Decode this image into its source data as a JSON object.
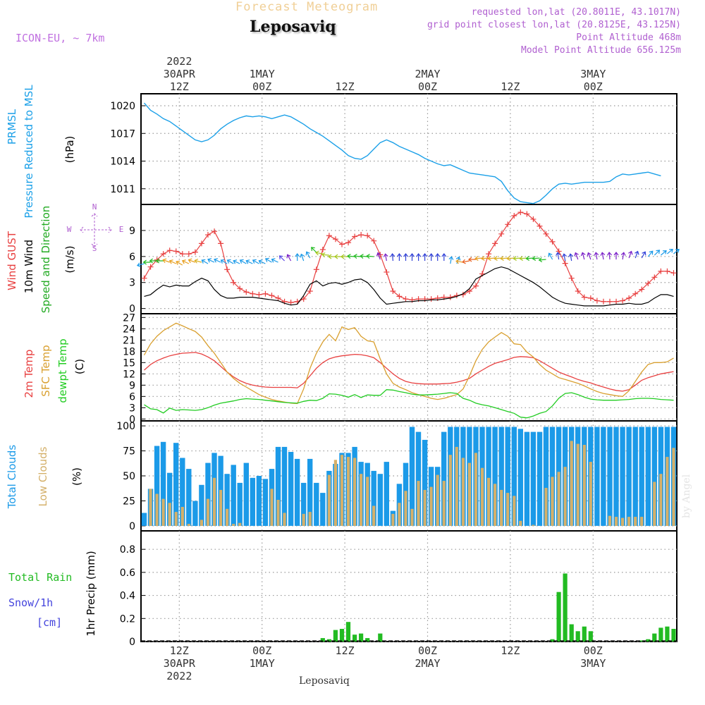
{
  "header": {
    "title_top": "Forecast Meteogram",
    "location": "Leposaviq",
    "model": "ICON-EU, ~ 7km",
    "requested": "requested lon,lat (20.8011E, 43.1017N)",
    "grid_point": "grid point closest lon,lat (20.8125E, 43.125N)",
    "point_alt": "Point Altitude 468m",
    "model_alt": "Model Point Altitude 656.125m",
    "footer": "Leposaviq",
    "credit": "by Angel"
  },
  "colors": {
    "pressure": "#1ba0e8",
    "gust": "#e84040",
    "wind": "#000000",
    "direction": "#22aa22",
    "t2m": "#e84040",
    "sfc": "#d9a030",
    "dewpt": "#22cc22",
    "total_clouds": "#1b9ae8",
    "low_clouds": "#d4b06a",
    "rain": "#22bb22",
    "snow": "#4444dd",
    "meta": "#b060d0"
  },
  "time_axis": {
    "start": "2022-04-30 06Z",
    "step_hours": 1,
    "top_labels": [
      {
        "lines": [
          "2022",
          "30APR",
          "12Z"
        ]
      },
      {
        "lines": [
          "1MAY",
          "00Z"
        ]
      },
      {
        "lines": [
          "12Z"
        ]
      },
      {
        "lines": [
          "2MAY",
          "00Z"
        ]
      },
      {
        "lines": [
          "12Z"
        ]
      },
      {
        "lines": [
          "3MAY",
          "00Z"
        ]
      }
    ],
    "bottom_labels": [
      {
        "lines": [
          "12Z",
          "30APR",
          "2022"
        ]
      },
      {
        "lines": [
          "00Z",
          "1MAY"
        ]
      },
      {
        "lines": [
          "12Z"
        ]
      },
      {
        "lines": [
          "00Z",
          "2MAY"
        ]
      },
      {
        "lines": [
          "12Z"
        ]
      },
      {
        "lines": [
          "00Z",
          "3MAY"
        ]
      }
    ]
  },
  "chart_data": [
    {
      "type": "line",
      "panel": "pressure",
      "ylabel_lines": [
        "PRMSL",
        "Pressure Reduced to MSL"
      ],
      "unit": "(hPa)",
      "yticks": [
        1011,
        1014,
        1017,
        1020
      ],
      "ylim": [
        1009.3,
        1021.3
      ],
      "series": [
        {
          "values": [
            1020.3,
            1019.5,
            1019.1,
            1018.6,
            1018.3,
            1017.8,
            1017.3,
            1016.8,
            1016.3,
            1016.1,
            1016.3,
            1016.8,
            1017.5,
            1018.0,
            1018.4,
            1018.7,
            1018.9,
            1018.8,
            1018.9,
            1018.8,
            1018.6,
            1018.8,
            1019.0,
            1018.8,
            1018.4,
            1018.0,
            1017.5,
            1017.1,
            1016.7,
            1016.2,
            1015.7,
            1015.2,
            1014.6,
            1014.3,
            1014.2,
            1014.6,
            1015.3,
            1016.0,
            1016.3,
            1016.0,
            1015.6,
            1015.3,
            1015.0,
            1014.7,
            1014.3,
            1014.0,
            1013.7,
            1013.5,
            1013.6,
            1013.3,
            1013.0,
            1012.7,
            1012.6,
            1012.5,
            1012.4,
            1012.3,
            1011.8,
            1010.8,
            1010.0,
            1009.6,
            1009.5,
            1009.4,
            1009.7,
            1010.3,
            1011.0,
            1011.5,
            1011.6,
            1011.5,
            1011.6,
            1011.7,
            1011.7,
            1011.7,
            1011.7,
            1011.8,
            1012.3,
            1012.6,
            1012.5,
            1012.6,
            1012.7,
            1012.8,
            1012.6,
            1012.4
          ]
        }
      ]
    },
    {
      "type": "line",
      "panel": "wind",
      "ylabel_lines": [
        "Wind GUST",
        "10m Wind",
        "Speed and Direction"
      ],
      "unit": "(m/s)",
      "compass": {
        "n": "N",
        "s": "S",
        "w": "W",
        "e": "E"
      },
      "yticks": [
        0,
        3,
        6,
        9
      ],
      "ylim": [
        -0.6,
        12
      ],
      "series": [
        {
          "name": "Wind GUST",
          "values": [
            3.5,
            4.8,
            5.6,
            6.3,
            6.7,
            6.6,
            6.3,
            6.3,
            6.5,
            7.5,
            8.5,
            8.9,
            7.5,
            4.5,
            3.0,
            2.3,
            1.9,
            1.7,
            1.6,
            1.7,
            1.5,
            1.2,
            0.8,
            0.7,
            0.8,
            1.1,
            2.0,
            4.5,
            6.8,
            8.4,
            8.0,
            7.4,
            7.6,
            8.3,
            8.5,
            8.4,
            7.8,
            6.2,
            4.2,
            2.0,
            1.4,
            1.1,
            1.0,
            1.1,
            1.1,
            1.1,
            1.2,
            1.3,
            1.3,
            1.5,
            1.6,
            2.0,
            2.6,
            4.0,
            6.3,
            7.5,
            8.6,
            9.7,
            10.7,
            11.1,
            10.9,
            10.3,
            9.5,
            8.6,
            7.7,
            6.6,
            5.2,
            3.5,
            2.0,
            1.3,
            1.2,
            0.9,
            0.8,
            0.8,
            0.8,
            0.9,
            1.2,
            1.7,
            2.2,
            2.9,
            3.6,
            4.3,
            4.3,
            4.1
          ]
        },
        {
          "name": "10m Wind",
          "values": [
            1.4,
            1.6,
            2.2,
            2.7,
            2.5,
            2.7,
            2.6,
            2.6,
            3.1,
            3.5,
            3.2,
            2.2,
            1.5,
            1.2,
            1.2,
            1.3,
            1.3,
            1.3,
            1.2,
            1.1,
            1.0,
            0.9,
            0.6,
            0.4,
            0.5,
            1.5,
            2.8,
            3.2,
            2.6,
            2.9,
            3.0,
            2.8,
            3.0,
            3.3,
            3.4,
            3.0,
            2.2,
            1.2,
            0.5,
            0.6,
            0.7,
            0.8,
            0.8,
            0.9,
            0.9,
            1.0,
            1.0,
            1.1,
            1.2,
            1.4,
            1.7,
            2.3,
            3.4,
            3.8,
            4.2,
            4.6,
            4.8,
            4.6,
            4.2,
            3.8,
            3.4,
            3.0,
            2.5,
            1.9,
            1.3,
            0.9,
            0.6,
            0.5,
            0.4,
            0.3,
            0.3,
            0.3,
            0.3,
            0.4,
            0.5,
            0.5,
            0.6,
            0.5,
            0.5,
            0.7,
            1.2,
            1.6,
            1.6,
            1.4
          ]
        }
      ]
    },
    {
      "type": "line",
      "panel": "temperature",
      "ylabel_lines": [
        "2m Temp",
        "SFC Temp",
        "dewpt Temp"
      ],
      "unit": "(C)",
      "yticks": [
        0,
        3,
        6,
        9,
        12,
        15,
        18,
        21,
        24,
        27
      ],
      "ylim": [
        -0.5,
        28
      ],
      "series": [
        {
          "name": "2m Temp",
          "values": [
            13.0,
            14.5,
            15.5,
            16.2,
            16.8,
            17.2,
            17.5,
            17.6,
            17.7,
            17.3,
            16.5,
            15.5,
            14.0,
            12.5,
            11.2,
            10.2,
            9.5,
            9.0,
            8.7,
            8.5,
            8.4,
            8.4,
            8.4,
            8.4,
            8.3,
            9.5,
            11.5,
            13.5,
            15.0,
            16.0,
            16.5,
            16.8,
            17.0,
            17.2,
            17.1,
            16.8,
            16.3,
            15.0,
            13.5,
            12.0,
            10.8,
            10.0,
            9.6,
            9.4,
            9.3,
            9.3,
            9.3,
            9.4,
            9.5,
            9.8,
            10.2,
            10.8,
            12.0,
            13.0,
            14.0,
            14.8,
            15.3,
            15.8,
            16.4,
            16.6,
            16.5,
            16.3,
            15.5,
            14.5,
            13.5,
            12.5,
            11.8,
            11.2,
            10.5,
            10.0,
            9.6,
            9.0,
            8.5,
            8.0,
            7.6,
            7.4,
            7.8,
            9.0,
            10.3,
            11.0,
            11.5,
            12.0,
            12.3,
            12.6
          ]
        },
        {
          "name": "SFC Temp",
          "values": [
            17.0,
            20.0,
            22.0,
            23.5,
            24.5,
            25.5,
            24.8,
            24.0,
            23.3,
            21.8,
            19.5,
            17.5,
            15.0,
            12.5,
            10.8,
            9.5,
            8.5,
            7.5,
            6.5,
            5.8,
            5.2,
            4.8,
            4.5,
            4.2,
            4.1,
            8.0,
            13.5,
            17.5,
            20.5,
            22.5,
            20.8,
            24.5,
            23.8,
            24.3,
            22.0,
            20.8,
            20.5,
            16.0,
            12.0,
            9.5,
            8.5,
            7.8,
            7.0,
            6.5,
            6.0,
            5.5,
            5.2,
            5.5,
            6.0,
            6.5,
            8.0,
            11.5,
            15.5,
            18.5,
            20.5,
            21.8,
            23.0,
            22.0,
            20.0,
            19.8,
            17.8,
            16.5,
            14.5,
            13.0,
            12.0,
            11.0,
            10.5,
            10.0,
            9.5,
            8.8,
            8.0,
            7.3,
            6.8,
            6.5,
            6.2,
            6.0,
            7.5,
            10.0,
            12.5,
            14.5,
            15.0,
            15.0,
            15.2,
            16.2
          ]
        },
        {
          "name": "dewpt Temp",
          "values": [
            3.8,
            2.7,
            2.5,
            1.6,
            2.9,
            2.3,
            2.5,
            2.4,
            2.3,
            2.5,
            3.0,
            3.7,
            4.2,
            4.5,
            4.8,
            5.2,
            5.4,
            5.3,
            5.2,
            5.0,
            4.8,
            4.6,
            4.4,
            4.3,
            4.2,
            4.7,
            5.0,
            4.9,
            5.5,
            6.7,
            6.6,
            6.3,
            5.8,
            6.5,
            5.7,
            6.4,
            6.3,
            6.3,
            7.8,
            7.7,
            7.3,
            7.0,
            6.6,
            6.4,
            6.4,
            6.5,
            6.6,
            6.8,
            7.0,
            6.8,
            5.5,
            5.0,
            4.2,
            3.8,
            3.5,
            3.0,
            2.5,
            2.0,
            1.5,
            0.5,
            0.3,
            0.8,
            1.5,
            2.0,
            3.5,
            5.5,
            6.8,
            7.0,
            6.5,
            5.8,
            5.3,
            5.1,
            5.0,
            5.0,
            5.0,
            5.1,
            5.2,
            5.4,
            5.5,
            5.5,
            5.4,
            5.2,
            5.1,
            5.0
          ]
        }
      ]
    },
    {
      "type": "bar",
      "panel": "clouds",
      "ylabel_lines": [
        "Total Clouds",
        "Low Clouds"
      ],
      "unit": "(%)",
      "yticks": [
        0,
        25,
        50,
        75,
        100
      ],
      "ylim": [
        -5,
        105
      ],
      "series": [
        {
          "name": "Total Clouds",
          "values": [
            13,
            37,
            80,
            84,
            53,
            83,
            68,
            57,
            25,
            41,
            63,
            73,
            70,
            52,
            61,
            43,
            63,
            48,
            50,
            47,
            57,
            79,
            79,
            74,
            67,
            43,
            67,
            43,
            33,
            55,
            62,
            73,
            73,
            79,
            64,
            63,
            55,
            52,
            64,
            15,
            42,
            63,
            99,
            94,
            86,
            59,
            59,
            94,
            99,
            99,
            99,
            99,
            99,
            99,
            99,
            99,
            99,
            99,
            99,
            97,
            94,
            94,
            94,
            99,
            99,
            99,
            99,
            99,
            99,
            99,
            99,
            99,
            99,
            99,
            99,
            99,
            99,
            99,
            99,
            99,
            99,
            99,
            99,
            99
          ]
        },
        {
          "name": "Low Clouds",
          "values": [
            0,
            37,
            32,
            27,
            23,
            14,
            19,
            2,
            0,
            6,
            27,
            48,
            36,
            17,
            2,
            3,
            0,
            0,
            0,
            0,
            37,
            26,
            13,
            0,
            0,
            12,
            14,
            0,
            0,
            51,
            66,
            71,
            69,
            68,
            52,
            49,
            20,
            0,
            0,
            12,
            23,
            35,
            17,
            45,
            36,
            39,
            51,
            45,
            71,
            79,
            68,
            63,
            73,
            58,
            48,
            42,
            36,
            33,
            30,
            5,
            0,
            1,
            0,
            38,
            49,
            54,
            59,
            85,
            82,
            81,
            64,
            0,
            0,
            10,
            9,
            8,
            9,
            9,
            9,
            0,
            44,
            52,
            69,
            78
          ]
        }
      ]
    },
    {
      "type": "bar",
      "panel": "precip",
      "ylabel_lines": [
        "1hr Precip (mm)"
      ],
      "left_labels": [
        "Total  Rain",
        "Snow/1h",
        "[cm]"
      ],
      "yticks": [
        "0",
        "0.2",
        "0.4",
        "0.6",
        "0.8"
      ],
      "ylim": [
        0,
        0.96
      ],
      "series": [
        {
          "name": "Total Rain",
          "values": [
            0,
            0,
            0,
            0,
            0,
            0,
            0,
            0,
            0,
            0,
            0,
            0,
            0,
            0,
            0,
            0,
            0,
            0,
            0,
            0,
            0,
            0,
            0,
            0,
            0,
            0,
            0,
            0,
            0.03,
            0.02,
            0.1,
            0.11,
            0.17,
            0.06,
            0.07,
            0.03,
            0,
            0.07,
            0,
            0,
            0,
            0,
            0,
            0,
            0,
            0,
            0,
            0,
            0,
            0,
            0,
            0,
            0,
            0,
            0,
            0,
            0,
            0,
            0,
            0,
            0,
            0,
            0,
            0,
            0.02,
            0.43,
            0.59,
            0.15,
            0.09,
            0.13,
            0.09,
            0,
            0,
            0,
            0,
            0,
            0,
            0,
            0.01,
            0.02,
            0.07,
            0.12,
            0.13,
            0.11
          ]
        },
        {
          "name": "Snow/1h",
          "values": [
            0,
            0,
            0,
            0,
            0,
            0,
            0,
            0,
            0,
            0,
            0,
            0,
            0,
            0,
            0,
            0,
            0,
            0,
            0,
            0,
            0,
            0,
            0,
            0,
            0,
            0,
            0,
            0,
            0,
            0,
            0,
            0,
            0,
            0,
            0,
            0,
            0,
            0,
            0,
            0,
            0,
            0,
            0,
            0,
            0,
            0,
            0,
            0,
            0,
            0,
            0,
            0,
            0,
            0,
            0,
            0,
            0,
            0,
            0,
            0,
            0,
            0,
            0,
            0,
            0,
            0,
            0,
            0,
            0,
            0,
            0,
            0,
            0,
            0,
            0,
            0,
            0,
            0,
            0,
            0,
            0,
            0,
            0,
            0
          ]
        }
      ]
    }
  ]
}
